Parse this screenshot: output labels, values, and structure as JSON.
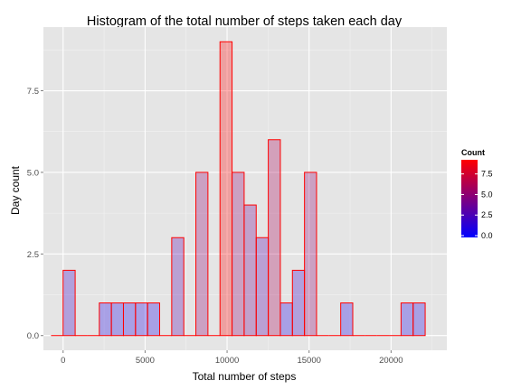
{
  "chart_data": {
    "type": "bar",
    "title": "Histogram of the total number of steps taken each day",
    "xlabel": "Total number of steps",
    "ylabel": "Day count",
    "xlim": [
      -1200,
      23400
    ],
    "ylim": [
      -0.45,
      9.45
    ],
    "x_ticks": [
      0,
      5000,
      10000,
      15000,
      20000
    ],
    "x_tick_labels": [
      "0",
      "5000",
      "10000",
      "15000",
      "20000"
    ],
    "y_ticks": [
      0,
      2.5,
      5,
      7.5
    ],
    "y_tick_labels": [
      "0.0",
      "2.5",
      "5.0",
      "7.5"
    ],
    "bin_width": 736,
    "bin_centers": [
      -368,
      368,
      1104,
      1840,
      2576,
      3312,
      4048,
      4784,
      5520,
      6256,
      6992,
      7728,
      8464,
      9200,
      9936,
      10672,
      11408,
      12144,
      12880,
      13616,
      14352,
      15088,
      15824,
      16560,
      17296,
      18032,
      18768,
      19504,
      20240,
      20976,
      21712
    ],
    "counts": [
      0,
      2,
      0,
      0,
      1,
      1,
      1,
      1,
      1,
      0,
      3,
      0,
      5,
      0,
      9,
      5,
      4,
      3,
      6,
      1,
      2,
      5,
      0,
      0,
      1,
      0,
      0,
      0,
      0,
      1,
      1
    ],
    "grid": true,
    "legend": {
      "title": "Count",
      "position": "right",
      "labels": [
        "7.5",
        "5.0",
        "2.5",
        "0.0"
      ],
      "values": [
        7.5,
        5.0,
        2.5,
        0.0
      ],
      "range": [
        0,
        9
      ],
      "color_low": "#0000ff",
      "color_high": "#ff0000"
    },
    "colors": {
      "bar_outline": "#ff0000",
      "panel_background": "#e5e5e5",
      "grid_major": "#ffffff",
      "grid_minor": "#f2f2f2"
    }
  }
}
